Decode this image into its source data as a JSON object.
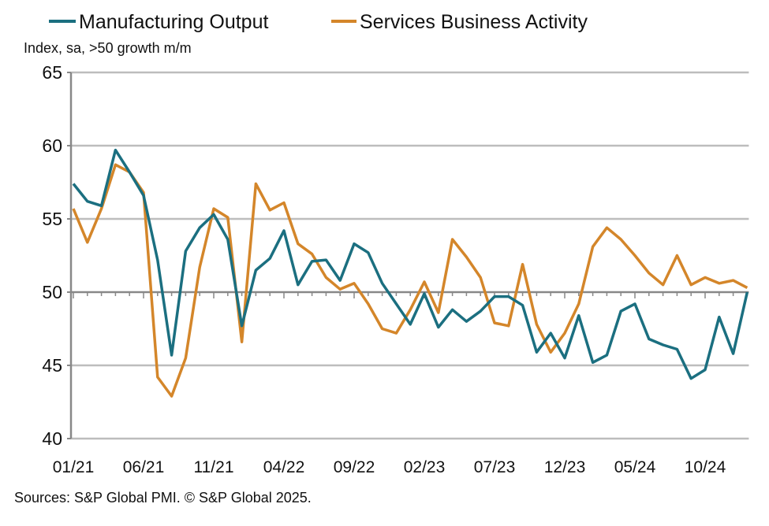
{
  "chart_data": {
    "type": "line",
    "title": "",
    "subtitle": "Index, sa, >50 growth m/m",
    "xlabel": "",
    "ylabel": "",
    "ylim": [
      40,
      65
    ],
    "yticks": [
      40,
      45,
      50,
      55,
      60,
      65
    ],
    "reference_line": 50,
    "grid": true,
    "legend": "top",
    "x_start": "01/21",
    "x_end": "01/25",
    "x_tick_labels": [
      "01/21",
      "06/21",
      "11/21",
      "04/22",
      "09/22",
      "02/23",
      "07/23",
      "12/23",
      "05/24",
      "10/24"
    ],
    "series": [
      {
        "name": "Manufacturing Output",
        "color": "#1b6f80",
        "values": [
          57.4,
          56.2,
          55.9,
          59.7,
          58.2,
          56.6,
          52.2,
          45.7,
          52.8,
          54.4,
          55.3,
          53.6,
          47.7,
          51.5,
          52.3,
          54.2,
          50.5,
          52.1,
          52.2,
          50.8,
          53.3,
          52.7,
          50.6,
          49.2,
          47.8,
          49.9,
          47.6,
          48.8,
          48.0,
          48.7,
          49.7,
          49.7,
          49.1,
          45.9,
          47.2,
          45.5,
          48.4,
          45.2,
          45.7,
          48.7,
          49.2,
          46.8,
          46.4,
          46.1,
          44.1,
          44.7,
          48.3,
          45.8,
          50.0
        ]
      },
      {
        "name": "Services Business Activity",
        "color": "#d4862a",
        "values": [
          55.7,
          53.4,
          55.7,
          58.7,
          58.2,
          56.8,
          44.2,
          42.9,
          45.5,
          51.7,
          55.7,
          55.1,
          46.6,
          57.4,
          55.6,
          56.1,
          53.3,
          52.6,
          51.0,
          50.2,
          50.6,
          49.2,
          47.5,
          47.2,
          48.8,
          50.7,
          48.6,
          53.6,
          52.4,
          51.0,
          47.9,
          47.7,
          51.9,
          47.8,
          45.9,
          47.2,
          49.2,
          53.1,
          54.4,
          53.6,
          52.5,
          51.3,
          50.5,
          52.5,
          50.5,
          51.0,
          50.6,
          50.8,
          50.3
        ]
      }
    ]
  },
  "footer": {
    "source": "Sources: S&P Global PMI. © S&P Global 2025."
  }
}
